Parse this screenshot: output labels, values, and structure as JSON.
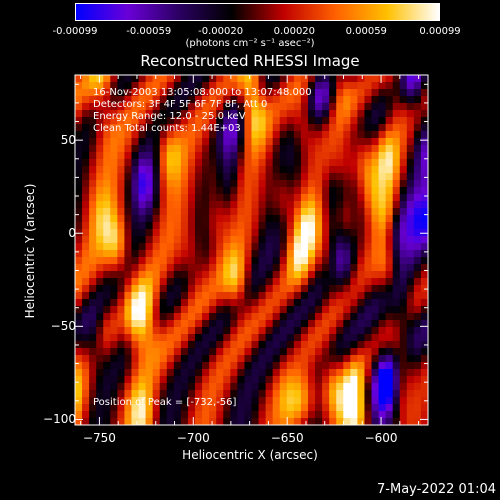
{
  "colorbar": {
    "ticks": [
      "-0.00099",
      "-0.00059",
      "-0.00020",
      "0.00020",
      "0.00059",
      "0.00099"
    ],
    "unit_label": "(photons cm⁻² s⁻¹ asec⁻²)",
    "colors": [
      "#0000ff",
      "#6a00d8",
      "#2a0060",
      "#000000",
      "#c00000",
      "#ff6000",
      "#ffc000",
      "#ffffff"
    ]
  },
  "annotations": {
    "time_range": "16-Nov-2003 13:05:08.000 to 13:07:48.000",
    "detectors": "Detectors: 3F 4F 5F 6F 7F 8F, Att 0",
    "energy_range": "Energy Range: 12.0 - 25.0 keV",
    "clean_counts": "Clean    Total counts: 1.44E+03",
    "peak_position": "Position of Peak = [-732,-56]"
  },
  "timestamp": "7-May-2022 01:04",
  "chart_data": {
    "type": "heatmap",
    "title": "Reconstructed RHESSI Image",
    "xlabel": "Heliocentric X (arcsec)",
    "ylabel": "Heliocentric Y (arcsec)",
    "xlim": [
      -763,
      -575
    ],
    "ylim": [
      -103,
      85
    ],
    "x_ticks": [
      -750,
      -700,
      -650,
      -600
    ],
    "y_ticks": [
      -100,
      -50,
      0,
      50
    ],
    "x_tick_labels": [
      "−750",
      "−700",
      "−650",
      "−600"
    ],
    "y_tick_labels": [
      "−100",
      "−50",
      "0",
      "50"
    ],
    "color_range": [
      -0.00099,
      0.00099
    ],
    "peak": [
      -732,
      -56
    ]
  }
}
